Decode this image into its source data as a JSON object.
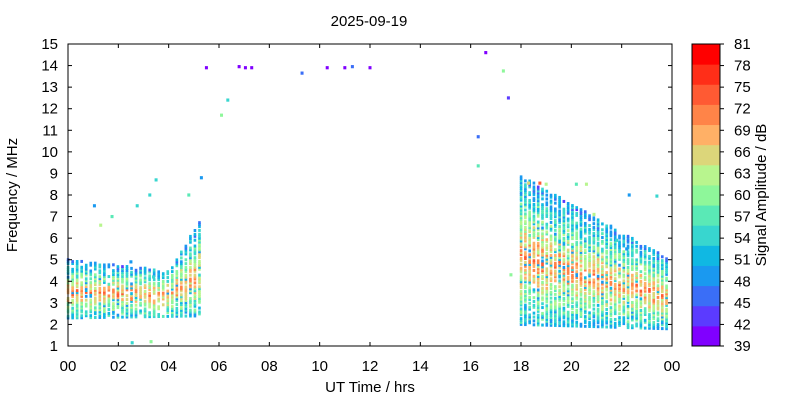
{
  "chart_data": {
    "type": "scatter",
    "title": "2025-09-19",
    "xlabel": "UT Time / hrs",
    "ylabel": "Frequency / MHz",
    "xlim": [
      0,
      24
    ],
    "ylim": [
      1,
      15
    ],
    "x_ticks": [
      "00",
      "02",
      "04",
      "06",
      "08",
      "10",
      "12",
      "14",
      "16",
      "18",
      "20",
      "22",
      "00"
    ],
    "y_ticks": [
      "1",
      "2",
      "3",
      "4",
      "5",
      "6",
      "7",
      "8",
      "9",
      "10",
      "11",
      "12",
      "13",
      "14",
      "15"
    ],
    "grid": false,
    "colorbar": {
      "label": "Signal Amplitude / dB",
      "min": 39,
      "max": 81,
      "ticks": [
        "39",
        "42",
        "45",
        "48",
        "51",
        "54",
        "57",
        "60",
        "63",
        "66",
        "69",
        "72",
        "75",
        "78",
        "81"
      ],
      "colors": [
        "#8000ff",
        "#5b3bff",
        "#3a6ef7",
        "#1a99f0",
        "#10b8e3",
        "#38d6cf",
        "#5ae9b6",
        "#8ef79a",
        "#b8f58e",
        "#dcd67a",
        "#ffb066",
        "#ff8448",
        "#ff5a33",
        "#ff2e18",
        "#ff0000"
      ]
    },
    "series": [
      {
        "points": [
          [
            5.5,
            13.9,
            40
          ],
          [
            6.8,
            13.95,
            41
          ],
          [
            7.05,
            13.9,
            40
          ],
          [
            7.3,
            13.9,
            40
          ],
          [
            9.3,
            13.65,
            47
          ],
          [
            10.3,
            13.9,
            41
          ],
          [
            11.0,
            13.9,
            41
          ],
          [
            11.3,
            13.95,
            46
          ],
          [
            12.0,
            13.9,
            41
          ],
          [
            16.6,
            14.6,
            41
          ],
          [
            17.5,
            12.5,
            43
          ],
          [
            17.3,
            13.75,
            60
          ],
          [
            16.3,
            10.7,
            47
          ],
          [
            16.3,
            9.35,
            56
          ],
          [
            6.1,
            11.7,
            60
          ],
          [
            6.35,
            12.4,
            55
          ],
          [
            5.3,
            8.8,
            48
          ],
          [
            4.8,
            8.0,
            56
          ],
          [
            3.5,
            8.7,
            53
          ],
          [
            3.25,
            8.0,
            54
          ],
          [
            2.75,
            7.5,
            53
          ],
          [
            1.75,
            7.0,
            56
          ],
          [
            1.05,
            7.5,
            50
          ],
          [
            1.3,
            6.6,
            64
          ],
          [
            17.6,
            4.3,
            60
          ],
          [
            18.3,
            8.55,
            66
          ],
          [
            18.75,
            8.55,
            75
          ],
          [
            19.0,
            8.5,
            64
          ],
          [
            20.2,
            8.5,
            57
          ],
          [
            20.6,
            8.5,
            63
          ],
          [
            20.9,
            7.1,
            64
          ],
          [
            21.8,
            5.9,
            53
          ],
          [
            22.2,
            5.5,
            48
          ],
          [
            22.3,
            8.0,
            48
          ],
          [
            23.4,
            7.95,
            53
          ],
          [
            2.55,
            1.15,
            54
          ],
          [
            3.3,
            1.2,
            60
          ],
          [
            2.5,
            4.9,
            48
          ],
          [
            3.4,
            4.2,
            53
          ]
        ]
      }
    ]
  }
}
